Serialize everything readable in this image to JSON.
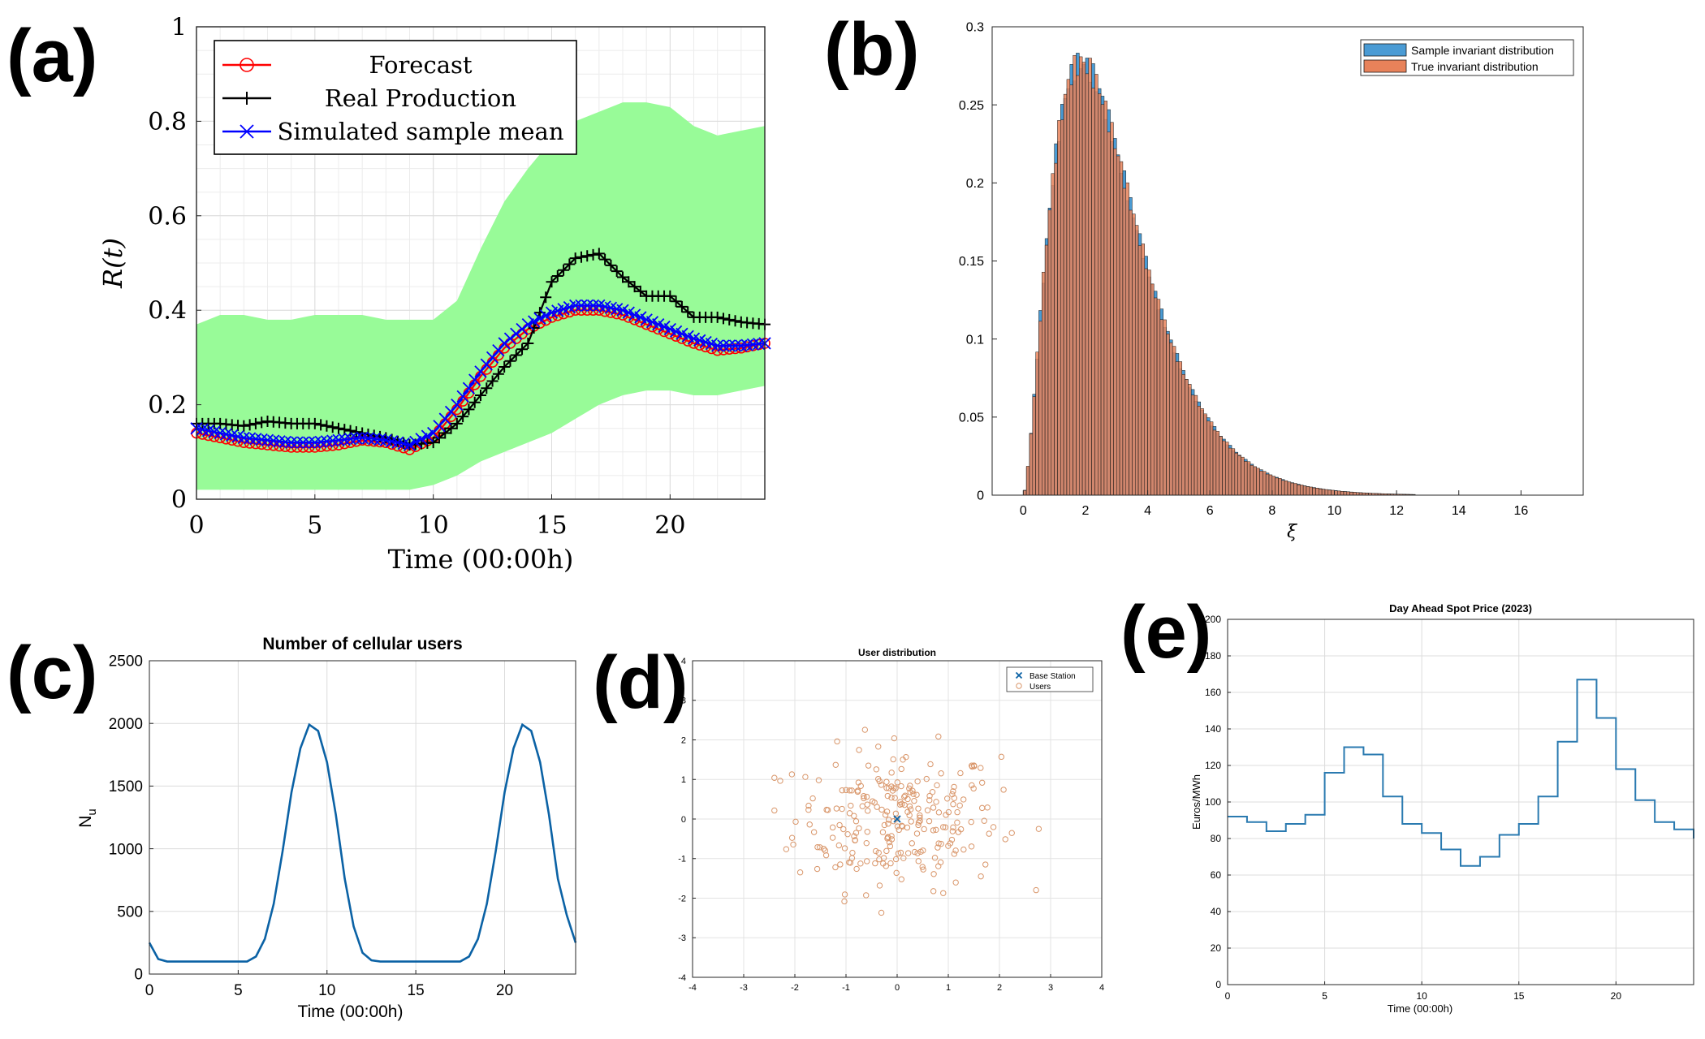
{
  "panels": {
    "a": {
      "letter": "(a)"
    },
    "b": {
      "letter": "(b)"
    },
    "c": {
      "letter": "(c)"
    },
    "d": {
      "letter": "(d)"
    },
    "e": {
      "letter": "(e)"
    }
  },
  "chart_data": [
    {
      "id": "a",
      "type": "line",
      "title": "",
      "xlabel": "Time (00:00h)",
      "ylabel": "R(t)",
      "xlim": [
        0,
        24
      ],
      "ylim": [
        0,
        1
      ],
      "xticks": [
        0,
        5,
        10,
        15,
        20
      ],
      "yticks": [
        0,
        0.2,
        0.4,
        0.6,
        0.8,
        1
      ],
      "ytick_labels": [
        "0",
        "0.2",
        "0.4",
        "0.6",
        "0.8",
        "1"
      ],
      "grid": true,
      "legend_position": "top-left",
      "band_color": "#98fb98",
      "band": {
        "x": [
          0,
          1,
          2,
          3,
          4,
          5,
          6,
          7,
          8,
          9,
          10,
          11,
          12,
          13,
          14,
          15,
          16,
          17,
          18,
          19,
          20,
          21,
          22,
          23,
          24
        ],
        "lower": [
          0.02,
          0.02,
          0.02,
          0.02,
          0.02,
          0.02,
          0.02,
          0.02,
          0.02,
          0.02,
          0.03,
          0.05,
          0.08,
          0.1,
          0.12,
          0.14,
          0.17,
          0.2,
          0.22,
          0.23,
          0.23,
          0.22,
          0.22,
          0.23,
          0.24
        ],
        "upper": [
          0.37,
          0.39,
          0.39,
          0.38,
          0.38,
          0.39,
          0.39,
          0.39,
          0.38,
          0.38,
          0.38,
          0.42,
          0.53,
          0.63,
          0.7,
          0.76,
          0.8,
          0.82,
          0.84,
          0.84,
          0.83,
          0.79,
          0.77,
          0.78,
          0.79
        ]
      },
      "series": [
        {
          "name": "Forecast",
          "color": "#ff0000",
          "marker": "circle",
          "x": [
            0,
            1,
            2,
            3,
            4,
            5,
            6,
            7,
            8,
            9,
            10,
            11,
            12,
            13,
            14,
            15,
            16,
            17,
            18,
            19,
            20,
            21,
            22,
            23,
            24
          ],
          "y": [
            0.14,
            0.13,
            0.12,
            0.115,
            0.11,
            0.11,
            0.115,
            0.125,
            0.12,
            0.105,
            0.13,
            0.19,
            0.26,
            0.32,
            0.36,
            0.385,
            0.4,
            0.4,
            0.39,
            0.37,
            0.35,
            0.33,
            0.315,
            0.32,
            0.33
          ]
        },
        {
          "name": "Real Production",
          "color": "#000000",
          "marker": "plus",
          "x": [
            0,
            1,
            2,
            3,
            4,
            5,
            6,
            7,
            8,
            9,
            10,
            11,
            12,
            13,
            14,
            15,
            16,
            17,
            18,
            19,
            20,
            21,
            22,
            23,
            24
          ],
          "y": [
            0.16,
            0.16,
            0.155,
            0.165,
            0.16,
            0.16,
            0.15,
            0.14,
            0.13,
            0.115,
            0.12,
            0.16,
            0.22,
            0.28,
            0.33,
            0.46,
            0.51,
            0.52,
            0.47,
            0.43,
            0.43,
            0.385,
            0.385,
            0.375,
            0.37
          ]
        },
        {
          "name": "Simulated sample mean",
          "color": "#0000ff",
          "marker": "x",
          "x": [
            0,
            1,
            2,
            3,
            4,
            5,
            6,
            7,
            8,
            9,
            10,
            11,
            12,
            13,
            14,
            15,
            16,
            17,
            18,
            19,
            20,
            21,
            22,
            23,
            24
          ],
          "y": [
            0.15,
            0.14,
            0.13,
            0.125,
            0.12,
            0.12,
            0.125,
            0.13,
            0.125,
            0.115,
            0.14,
            0.2,
            0.27,
            0.33,
            0.37,
            0.395,
            0.41,
            0.41,
            0.4,
            0.38,
            0.36,
            0.34,
            0.325,
            0.325,
            0.33
          ]
        }
      ]
    },
    {
      "id": "b",
      "type": "bar",
      "title": "",
      "xlabel": "ξ",
      "ylabel": "",
      "xlim": [
        -1,
        18
      ],
      "ylim": [
        0,
        0.3
      ],
      "xticks": [
        0,
        2,
        4,
        6,
        8,
        10,
        12,
        14,
        16
      ],
      "yticks": [
        0,
        0.05,
        0.1,
        0.15,
        0.2,
        0.25,
        0.3
      ],
      "ytick_labels": [
        "0",
        "0.05",
        "0.1",
        "0.15",
        "0.2",
        "0.25",
        "0.3"
      ],
      "grid": false,
      "legend_position": "top-right",
      "bin_width": 0.1,
      "series": [
        {
          "name": "Sample invariant distribution",
          "color": "#4a9bd4"
        },
        {
          "name": "True invariant distribution",
          "color": "#e8825a"
        }
      ],
      "density": {
        "shape": 2.7,
        "scale": 1.1,
        "peak": 0.277
      }
    },
    {
      "id": "c",
      "type": "line",
      "title": "Number of cellular users",
      "xlabel": "Time (00:00h)",
      "ylabel": "N_u",
      "xlim": [
        0,
        24
      ],
      "ylim": [
        0,
        2500
      ],
      "xticks": [
        0,
        5,
        10,
        15,
        20
      ],
      "yticks": [
        0,
        500,
        1000,
        1500,
        2000,
        2500
      ],
      "grid": true,
      "series": [
        {
          "name": "",
          "color": "#0b62a5",
          "x": [
            0,
            0.5,
            1,
            2,
            3,
            4,
            5,
            5.5,
            6,
            6.5,
            7,
            7.5,
            8,
            8.5,
            9,
            9.5,
            10,
            10.5,
            11,
            11.5,
            12,
            12.5,
            13,
            14,
            15,
            16,
            17,
            17.5,
            18,
            18.5,
            19,
            19.5,
            20,
            20.5,
            21,
            21.5,
            22,
            22.5,
            23,
            23.5,
            24
          ],
          "y": [
            250,
            120,
            100,
            100,
            100,
            100,
            100,
            100,
            140,
            280,
            560,
            980,
            1450,
            1800,
            1990,
            1940,
            1690,
            1270,
            760,
            380,
            170,
            110,
            100,
            100,
            100,
            100,
            100,
            100,
            140,
            280,
            560,
            980,
            1450,
            1800,
            1990,
            1940,
            1690,
            1270,
            760,
            470,
            250
          ]
        }
      ]
    },
    {
      "id": "d",
      "type": "scatter",
      "title": "User distribution",
      "xlabel": "",
      "ylabel": "",
      "xlim": [
        -4,
        4
      ],
      "ylim": [
        -4,
        4
      ],
      "xticks": [
        -4,
        -3,
        -2,
        -1,
        0,
        1,
        2,
        3,
        4
      ],
      "yticks": [
        -4,
        -3,
        -2,
        -1,
        0,
        1,
        2,
        3,
        4
      ],
      "grid": true,
      "legend_position": "top-right",
      "series": [
        {
          "name": "Base Station",
          "color": "#0b62a5",
          "marker": "x",
          "x": [
            0
          ],
          "y": [
            0
          ]
        },
        {
          "name": "Users",
          "color": "#d9966a",
          "marker": "circle",
          "count": 250,
          "spread_x": 1.05,
          "spread_y": 0.95
        }
      ]
    },
    {
      "id": "e",
      "type": "line",
      "title": "Day Ahead Spot Price (2023)",
      "xlabel": "Time (00:00h)",
      "ylabel": "Euros/MWh",
      "xlim": [
        0,
        24
      ],
      "ylim": [
        0,
        200
      ],
      "xticks": [
        0,
        5,
        10,
        15,
        20
      ],
      "yticks": [
        0,
        20,
        40,
        60,
        80,
        100,
        120,
        140,
        160,
        180,
        200
      ],
      "grid": true,
      "step": true,
      "series": [
        {
          "name": "",
          "color": "#2a7ab0",
          "x": [
            0,
            1,
            2,
            3,
            4,
            5,
            6,
            7,
            8,
            9,
            10,
            11,
            12,
            13,
            14,
            15,
            16,
            17,
            18,
            19,
            20,
            21,
            22,
            23,
            24
          ],
          "y": [
            92,
            89,
            84,
            88,
            93,
            116,
            130,
            126,
            103,
            88,
            83,
            74,
            65,
            70,
            82,
            88,
            103,
            133,
            167,
            146,
            118,
            101,
            89,
            85,
            80
          ]
        }
      ]
    }
  ]
}
